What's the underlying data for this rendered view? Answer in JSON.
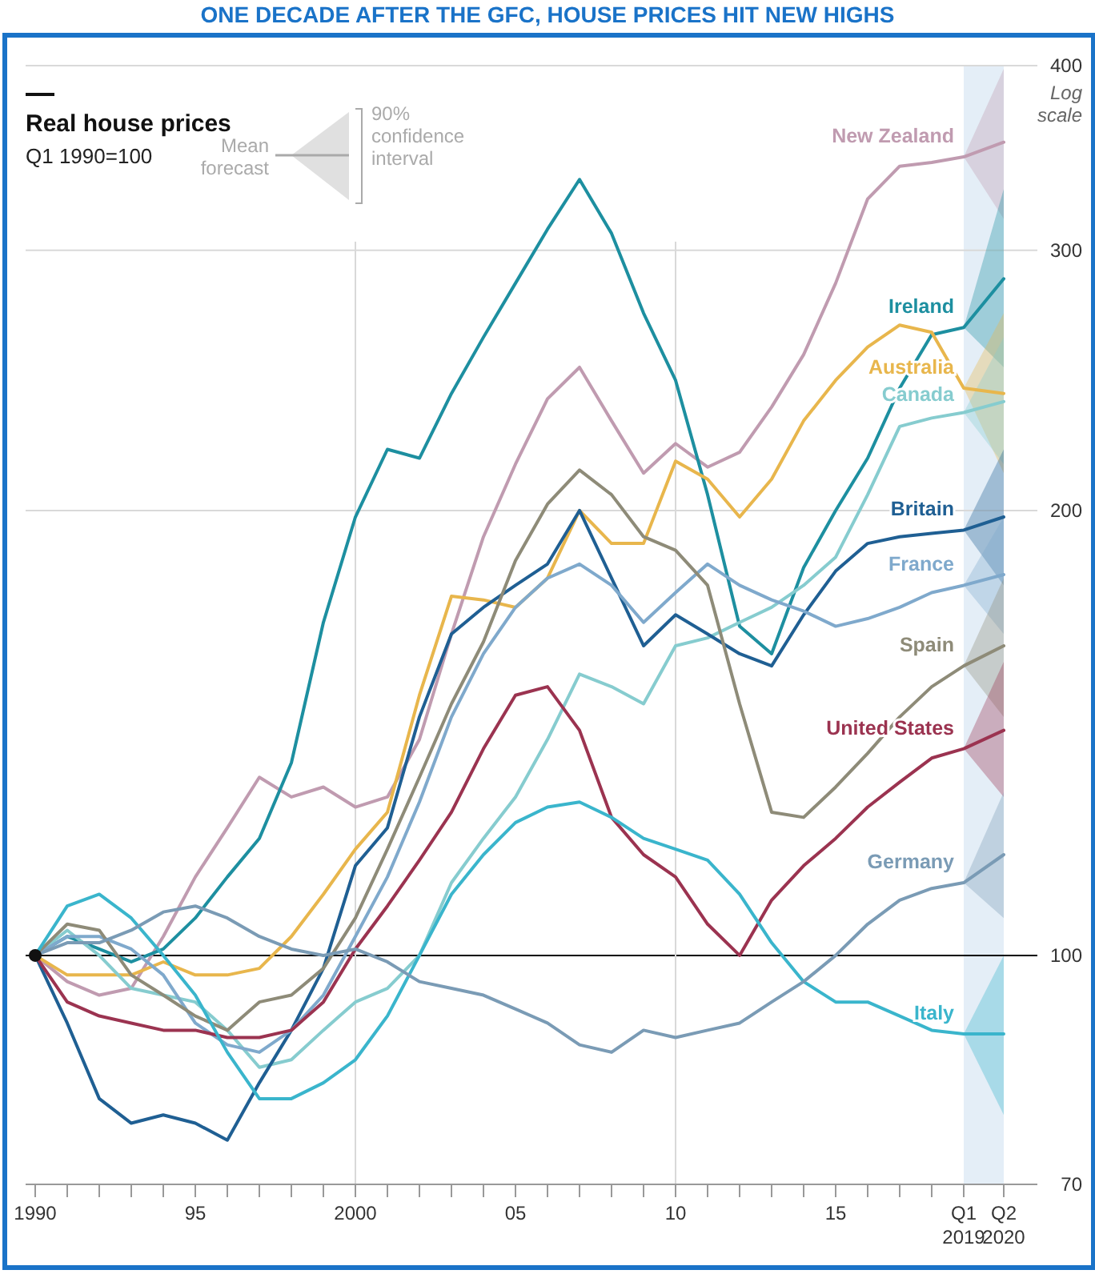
{
  "chart_data": {
    "type": "line",
    "title": "ONE DECADE AFTER THE GFC, HOUSE PRICES HIT NEW HIGHS",
    "ylabel": "Real house prices",
    "subtitle": "Q1 1990=100",
    "annotations": [
      "Mean forecast",
      "90% confidence interval",
      "Log scale"
    ],
    "log": true,
    "grid": "y",
    "xlim": [
      1989.7,
      2021.3
    ],
    "xticks": [
      1990,
      {
        "value": 1991,
        "label": null
      },
      {
        "value": 1992,
        "label": null
      },
      {
        "value": 1993,
        "label": null
      },
      {
        "value": 1994,
        "label": null
      },
      {
        "value": 1995,
        "label": "95"
      },
      {
        "value": 1996,
        "label": null
      },
      {
        "value": 1997,
        "label": null
      },
      {
        "value": 1998,
        "label": null
      },
      {
        "value": 1999,
        "label": null
      },
      2000,
      {
        "value": 2001,
        "label": null
      },
      {
        "value": 2002,
        "label": null
      },
      {
        "value": 2003,
        "label": null
      },
      {
        "value": 2004,
        "label": null
      },
      {
        "value": 2005,
        "label": "05"
      },
      {
        "value": 2006,
        "label": null
      },
      {
        "value": 2007,
        "label": null
      },
      {
        "value": 2008,
        "label": null
      },
      {
        "value": 2009,
        "label": null
      },
      {
        "value": 2010,
        "label": "10"
      },
      {
        "value": 2011,
        "label": null
      },
      {
        "value": 2012,
        "label": null
      },
      {
        "value": 2013,
        "label": null
      },
      {
        "value": 2014,
        "label": null
      },
      {
        "value": 2015,
        "label": "15"
      },
      {
        "value": 2016,
        "label": null
      },
      {
        "value": 2017,
        "label": null
      },
      {
        "value": 2018,
        "label": null
      },
      {
        "value": 2019,
        "label": "Q1 2019"
      },
      {
        "value": 2020.25,
        "label": "Q2 2020"
      }
    ],
    "ylim": [
      70,
      400
    ],
    "yticks": [
      70,
      100,
      200,
      300,
      400
    ],
    "x": [
      1990,
      1991,
      1992,
      1993,
      1994,
      1995,
      1996,
      1997,
      1998,
      1999,
      2000,
      2001,
      2002,
      2003,
      2004,
      2005,
      2006,
      2007,
      2008,
      2009,
      2010,
      2011,
      2012,
      2013,
      2014,
      2015,
      2016,
      2017,
      2018,
      2019,
      2020.25
    ],
    "series": [
      {
        "name": "New Zealand",
        "color": "#c09bb0",
        "values": [
          100,
          96,
          94,
          95,
          103,
          113,
          122,
          132,
          128,
          130,
          126,
          128,
          140,
          165,
          192,
          215,
          238,
          250,
          230,
          212,
          222,
          214,
          219,
          235,
          255,
          285,
          325,
          342,
          344,
          347,
          355
        ],
        "lower": [
          null,
          null,
          null,
          null,
          null,
          null,
          null,
          null,
          null,
          null,
          null,
          null,
          null,
          null,
          null,
          null,
          null,
          null,
          null,
          null,
          null,
          null,
          null,
          null,
          null,
          null,
          null,
          null,
          null,
          347,
          315
        ],
        "upper": [
          null,
          null,
          null,
          null,
          null,
          null,
          null,
          null,
          null,
          null,
          null,
          null,
          null,
          null,
          null,
          null,
          null,
          null,
          null,
          null,
          null,
          null,
          null,
          null,
          null,
          null,
          null,
          null,
          null,
          347,
          398
        ]
      },
      {
        "name": "Ireland",
        "color": "#1d8fa0",
        "values": [
          100,
          103,
          101,
          99,
          101,
          106,
          113,
          120,
          135,
          168,
          198,
          220,
          217,
          240,
          262,
          285,
          310,
          335,
          308,
          272,
          245,
          205,
          167,
          160,
          183,
          200,
          217,
          242,
          263,
          266,
          287
        ],
        "lower": [
          null,
          null,
          null,
          null,
          null,
          null,
          null,
          null,
          null,
          null,
          null,
          null,
          null,
          null,
          null,
          null,
          null,
          null,
          null,
          null,
          null,
          null,
          null,
          null,
          null,
          null,
          null,
          null,
          null,
          266,
          250
        ],
        "upper": [
          null,
          null,
          null,
          null,
          null,
          null,
          null,
          null,
          null,
          null,
          null,
          null,
          null,
          null,
          null,
          null,
          null,
          null,
          null,
          null,
          null,
          null,
          null,
          null,
          null,
          null,
          null,
          null,
          null,
          266,
          330
        ]
      },
      {
        "name": "Australia",
        "color": "#e8b64c",
        "values": [
          100,
          97,
          97,
          97,
          99,
          97,
          97,
          98,
          103,
          110,
          118,
          125,
          150,
          175,
          174,
          172,
          180,
          200,
          190,
          190,
          216,
          210,
          198,
          210,
          230,
          245,
          258,
          267,
          264,
          242,
          240
        ],
        "lower": [
          null,
          null,
          null,
          null,
          null,
          null,
          null,
          null,
          null,
          null,
          null,
          null,
          null,
          null,
          null,
          null,
          null,
          null,
          null,
          null,
          null,
          null,
          null,
          null,
          null,
          null,
          null,
          null,
          null,
          242,
          212
        ],
        "upper": [
          null,
          null,
          null,
          null,
          null,
          null,
          null,
          null,
          null,
          null,
          null,
          null,
          null,
          null,
          null,
          null,
          null,
          null,
          null,
          null,
          null,
          null,
          null,
          null,
          null,
          null,
          null,
          null,
          null,
          242,
          272
        ]
      },
      {
        "name": "Canada",
        "color": "#86cccf",
        "values": [
          100,
          104,
          100,
          95,
          94,
          93,
          89,
          84,
          85,
          89,
          93,
          95,
          100,
          112,
          120,
          128,
          140,
          155,
          152,
          148,
          162,
          164,
          168,
          172,
          178,
          186,
          205,
          228,
          231,
          233,
          237
        ],
        "lower": [
          null,
          null,
          null,
          null,
          null,
          null,
          null,
          null,
          null,
          null,
          null,
          null,
          null,
          null,
          null,
          null,
          null,
          null,
          null,
          null,
          null,
          null,
          null,
          null,
          null,
          null,
          null,
          null,
          null,
          233,
          215
        ],
        "upper": [
          null,
          null,
          null,
          null,
          null,
          null,
          null,
          null,
          null,
          null,
          null,
          null,
          null,
          null,
          null,
          null,
          null,
          null,
          null,
          null,
          null,
          null,
          null,
          null,
          null,
          null,
          null,
          null,
          null,
          233,
          262
        ]
      },
      {
        "name": "Britain",
        "color": "#1f5f93",
        "values": [
          100,
          90,
          80,
          77,
          78,
          77,
          75,
          82,
          89,
          98,
          115,
          122,
          145,
          165,
          172,
          178,
          184,
          200,
          180,
          162,
          170,
          165,
          160,
          157,
          170,
          182,
          190,
          192,
          193,
          194,
          198
        ],
        "lower": [
          null,
          null,
          null,
          null,
          null,
          null,
          null,
          null,
          null,
          null,
          null,
          null,
          null,
          null,
          null,
          null,
          null,
          null,
          null,
          null,
          null,
          null,
          null,
          null,
          null,
          null,
          null,
          null,
          null,
          194,
          178
        ],
        "upper": [
          null,
          null,
          null,
          null,
          null,
          null,
          null,
          null,
          null,
          null,
          null,
          null,
          null,
          null,
          null,
          null,
          null,
          null,
          null,
          null,
          null,
          null,
          null,
          null,
          null,
          null,
          null,
          null,
          null,
          194,
          220
        ]
      },
      {
        "name": "France",
        "color": "#7fa9cc",
        "values": [
          100,
          103,
          103,
          101,
          97,
          90,
          87,
          86,
          89,
          94,
          103,
          113,
          127,
          145,
          160,
          172,
          180,
          184,
          178,
          168,
          176,
          184,
          178,
          174,
          171,
          167,
          169,
          172,
          176,
          178,
          181
        ],
        "lower": [
          null,
          null,
          null,
          null,
          null,
          null,
          null,
          null,
          null,
          null,
          null,
          null,
          null,
          null,
          null,
          null,
          null,
          null,
          null,
          null,
          null,
          null,
          null,
          null,
          null,
          null,
          null,
          null,
          null,
          178,
          165
        ],
        "upper": [
          null,
          null,
          null,
          null,
          null,
          null,
          null,
          null,
          null,
          null,
          null,
          null,
          null,
          null,
          null,
          null,
          null,
          null,
          null,
          null,
          null,
          null,
          null,
          null,
          null,
          null,
          null,
          null,
          null,
          178,
          198
        ]
      },
      {
        "name": "Spain",
        "color": "#8e8b78",
        "values": [
          100,
          105,
          104,
          97,
          94,
          91,
          89,
          93,
          94,
          98,
          106,
          118,
          132,
          148,
          163,
          185,
          202,
          213,
          205,
          192,
          188,
          178,
          148,
          125,
          124,
          130,
          137,
          145,
          152,
          157,
          162
        ],
        "lower": [
          null,
          null,
          null,
          null,
          null,
          null,
          null,
          null,
          null,
          null,
          null,
          null,
          null,
          null,
          null,
          null,
          null,
          null,
          null,
          null,
          null,
          null,
          null,
          null,
          null,
          null,
          null,
          null,
          null,
          157,
          145
        ],
        "upper": [
          null,
          null,
          null,
          null,
          null,
          null,
          null,
          null,
          null,
          null,
          null,
          null,
          null,
          null,
          null,
          null,
          null,
          null,
          null,
          null,
          null,
          null,
          null,
          null,
          null,
          null,
          null,
          null,
          null,
          157,
          180
        ]
      },
      {
        "name": "United States",
        "color": "#9b3350",
        "values": [
          100,
          93,
          91,
          90,
          89,
          89,
          88,
          88,
          89,
          93,
          101,
          108,
          116,
          125,
          138,
          150,
          152,
          142,
          124,
          117,
          113,
          105,
          100,
          109,
          115,
          120,
          126,
          131,
          136,
          138,
          142
        ],
        "lower": [
          null,
          null,
          null,
          null,
          null,
          null,
          null,
          null,
          null,
          null,
          null,
          null,
          null,
          null,
          null,
          null,
          null,
          null,
          null,
          null,
          null,
          null,
          null,
          null,
          null,
          null,
          null,
          null,
          null,
          138,
          128
        ],
        "upper": [
          null,
          null,
          null,
          null,
          null,
          null,
          null,
          null,
          null,
          null,
          null,
          null,
          null,
          null,
          null,
          null,
          null,
          null,
          null,
          null,
          null,
          null,
          null,
          null,
          null,
          null,
          null,
          null,
          null,
          138,
          158
        ]
      },
      {
        "name": "Italy",
        "color": "#3ab5cc",
        "values": [
          100,
          108,
          110,
          106,
          100,
          94,
          86,
          80,
          80,
          82,
          85,
          91,
          100,
          110,
          117,
          123,
          126,
          127,
          124,
          120,
          118,
          116,
          110,
          102,
          96,
          93,
          93,
          91,
          89,
          88.5,
          88.5
        ],
        "lower": [
          null,
          null,
          null,
          null,
          null,
          null,
          null,
          null,
          null,
          null,
          null,
          null,
          null,
          null,
          null,
          null,
          null,
          null,
          null,
          null,
          null,
          null,
          null,
          null,
          null,
          null,
          null,
          null,
          null,
          88.5,
          78
        ],
        "upper": [
          null,
          null,
          null,
          null,
          null,
          null,
          null,
          null,
          null,
          null,
          null,
          null,
          null,
          null,
          null,
          null,
          null,
          null,
          null,
          null,
          null,
          null,
          null,
          null,
          null,
          null,
          null,
          null,
          null,
          88.5,
          100
        ]
      },
      {
        "name": "Germany",
        "color": "#7a9bb5",
        "values": [
          100,
          102,
          102,
          104,
          107,
          108,
          106,
          103,
          101,
          100,
          101,
          99,
          96,
          95,
          94,
          92,
          90,
          87,
          86,
          89,
          88,
          89,
          90,
          93,
          96,
          100,
          105,
          109,
          111,
          112,
          117
        ],
        "lower": [
          null,
          null,
          null,
          null,
          null,
          null,
          null,
          null,
          null,
          null,
          null,
          null,
          null,
          null,
          null,
          null,
          null,
          null,
          null,
          null,
          null,
          null,
          null,
          null,
          null,
          null,
          null,
          null,
          null,
          112,
          106
        ],
        "upper": [
          null,
          null,
          null,
          null,
          null,
          null,
          null,
          null,
          null,
          null,
          null,
          null,
          null,
          null,
          null,
          null,
          null,
          null,
          null,
          null,
          null,
          null,
          null,
          null,
          null,
          null,
          null,
          null,
          null,
          112,
          129
        ]
      }
    ],
    "ref_lines": [
      {
        "axis": "y",
        "value": 100,
        "color": "#000000"
      },
      {
        "axis": "x",
        "value": 2000,
        "color": "#d9d9d9"
      },
      {
        "axis": "x",
        "value": 2010,
        "color": "#d9d9d9"
      }
    ],
    "bands": [
      {
        "axis": "x",
        "from": 2019,
        "to": 2020.25,
        "color": "#e4eef7"
      }
    ]
  }
}
